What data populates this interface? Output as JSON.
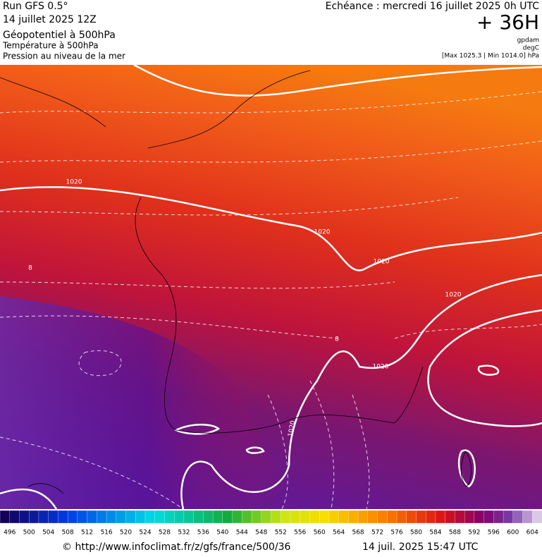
{
  "header": {
    "run": "Run GFS 0.5°",
    "run_date": "14 juillet 2025 12Z",
    "layer1": "Géopotentiel à 500hPa",
    "layer2": "Température à 500hPa",
    "layer3": "Pression au niveau de la mer",
    "valid": "Echéance : mercredi 16 juillet 2025 0h UTC",
    "lead": "+ 36H",
    "unit1": "gpdam",
    "unit2": "degC",
    "range": "[Max 1025.3 | Min 1014.0] hPa"
  },
  "map": {
    "contour_labels": [
      "1020",
      "1020",
      "1020",
      "1020",
      "1020",
      "1020"
    ],
    "temp_labels": [
      "8",
      "8"
    ]
  },
  "legend": {
    "labels": [
      "496",
      "500",
      "504",
      "508",
      "512",
      "516",
      "520",
      "524",
      "528",
      "532",
      "536",
      "540",
      "544",
      "548",
      "552",
      "556",
      "560",
      "564",
      "568",
      "572",
      "576",
      "580",
      "584",
      "588",
      "592",
      "596",
      "600",
      "604"
    ]
  },
  "footer": {
    "source": "© http://www.infoclimat.fr/z/gfs/france/500/36",
    "generated": "14 juil. 2025 15:47 UTC"
  }
}
